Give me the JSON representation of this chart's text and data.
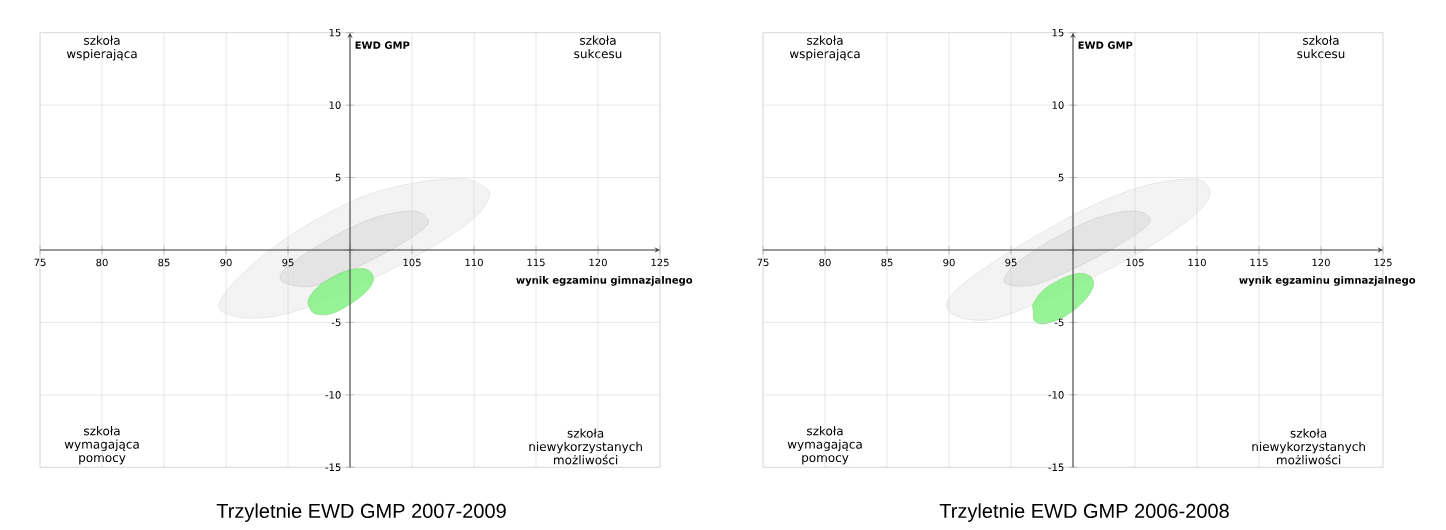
{
  "chart_data": [
    {
      "type": "area",
      "title": "Trzyletnie EWD GMP 2007-2009",
      "xlabel": "wynik egzaminu gimnazjalnego",
      "ylabel": "EWD GMP",
      "annotations": [
        "szkoła wspierająca",
        "szkoła sukcesu",
        "szkoła wymagająca pomocy",
        "szkoła niewykorzystanych możliwości"
      ],
      "xlim": [
        75,
        125
      ],
      "ylim": [
        -15,
        15
      ],
      "xticks": [
        75,
        80,
        85,
        90,
        95,
        {
          "value": 100,
          "label": null
        },
        105,
        110,
        115,
        120,
        125
      ],
      "yticks": [
        -15,
        -10,
        -5,
        {
          "value": 0,
          "label": null
        },
        5,
        10,
        15
      ],
      "grid": true,
      "series": [
        {
          "color": "#f0f0f0",
          "x": [
            89.5,
            90.7,
            93.4,
            97.1,
            101.4,
            105.7,
            109.2,
            110.9,
            111.2,
            110.0,
            106.8,
            102.5,
            97.6,
            94.4,
            91.7,
            89.8
          ],
          "values": [
            -3.6,
            -2.2,
            -0.1,
            2.0,
            3.8,
            4.7,
            4.9,
            4.3,
            3.6,
            2.2,
            0.3,
            -1.7,
            -3.6,
            -4.5,
            -4.7,
            -4.3
          ]
        },
        {
          "color": "#e0e0e0",
          "x": [
            94.4,
            95.5,
            98.4,
            101.9,
            104.9,
            106.1,
            106.1,
            103.5,
            99.8,
            96.9,
            94.8
          ],
          "values": [
            -1.7,
            -0.8,
            0.8,
            2.2,
            2.7,
            2.3,
            1.6,
            0.1,
            -1.5,
            -2.5,
            -2.3
          ]
        },
        {
          "color": "#7cf07c",
          "x": [
            96.7,
            97.6,
            99.2,
            100.5,
            101.5,
            101.9,
            101.4,
            100.1,
            98.5,
            97.2,
            96.7
          ],
          "values": [
            -3.3,
            -2.4,
            -1.6,
            -1.3,
            -1.4,
            -2.0,
            -2.8,
            -3.7,
            -4.4,
            -4.4,
            -3.9
          ]
        }
      ]
    },
    {
      "type": "area",
      "title": "Trzyletnie EWD GMP 2006-2008",
      "xlabel": "wynik egzaminu gimnazjalnego",
      "ylabel": "EWD GMP",
      "annotations": [
        "szkoła wspierająca",
        "szkoła sukcesu",
        "szkoła wymagająca pomocy",
        "szkoła niewykorzystanych możliwości"
      ],
      "xlim": [
        75,
        125
      ],
      "ylim": [
        -15,
        15
      ],
      "xticks": [
        75,
        80,
        85,
        90,
        95,
        {
          "value": 100,
          "label": null
        },
        105,
        110,
        115,
        120,
        125
      ],
      "yticks": [
        -15,
        -10,
        -5,
        {
          "value": 0,
          "label": null
        },
        5,
        10,
        15
      ],
      "grid": true,
      "series": [
        {
          "color": "#f0f0f0",
          "x": [
            89.8,
            91.2,
            94.0,
            97.7,
            101.9,
            106.1,
            109.5,
            110.8,
            110.9,
            109.2,
            105.5,
            101.1,
            96.7,
            93.3,
            90.7
          ],
          "values": [
            -3.7,
            -2.3,
            -0.6,
            1.3,
            3.2,
            4.5,
            4.9,
            4.5,
            3.5,
            2.0,
            -0.1,
            -2.1,
            -3.8,
            -4.8,
            -4.6
          ]
        },
        {
          "color": "#e0e0e0",
          "x": [
            94.5,
            95.6,
            98.5,
            101.9,
            104.8,
            106.1,
            105.9,
            103.4,
            99.8,
            96.9,
            94.8
          ],
          "values": [
            -1.9,
            -0.8,
            0.8,
            2.2,
            2.7,
            2.3,
            1.6,
            0.2,
            -1.4,
            -2.4,
            -2.4
          ]
        },
        {
          "color": "#7cf07c",
          "x": [
            96.8,
            97.7,
            99.3,
            100.6,
            101.5,
            101.6,
            100.8,
            99.3,
            97.7,
            96.9,
            96.8
          ],
          "values": [
            -3.7,
            -2.7,
            -1.9,
            -1.6,
            -1.9,
            -2.6,
            -3.6,
            -4.6,
            -5.1,
            -4.9,
            -4.2
          ]
        }
      ]
    }
  ]
}
